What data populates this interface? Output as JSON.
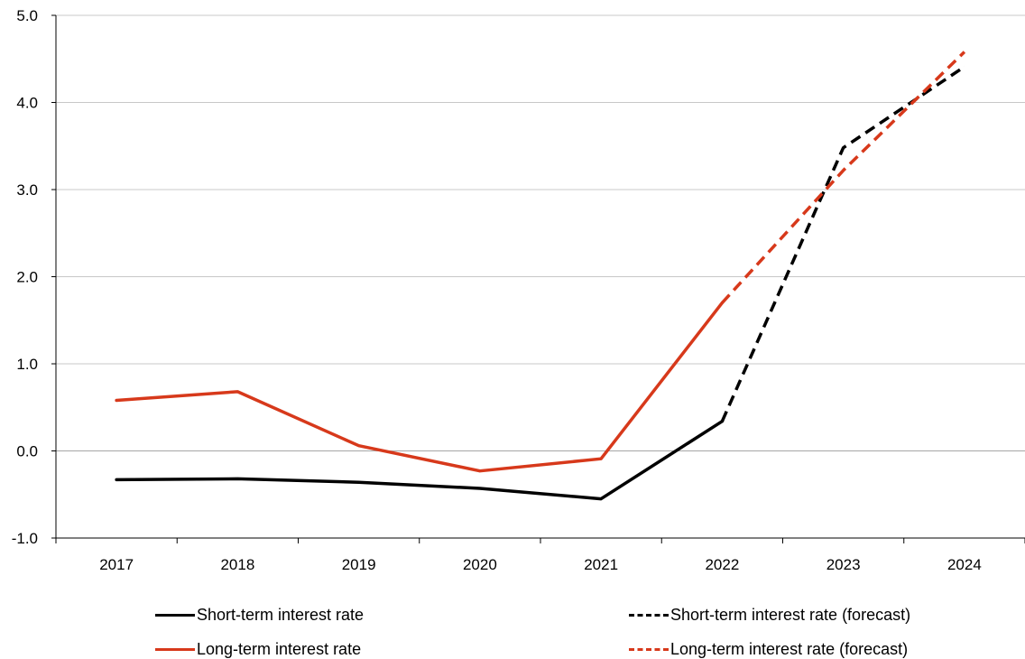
{
  "chart_data": {
    "type": "line",
    "title": "",
    "xlabel": "",
    "ylabel": "",
    "categories": [
      "2017",
      "2018",
      "2019",
      "2020",
      "2021",
      "2022",
      "2023",
      "2024"
    ],
    "ylim": [
      -1.0,
      5.0
    ],
    "yticks": [
      "-1.0",
      "0.0",
      "1.0",
      "2.0",
      "3.0",
      "4.0",
      "5.0"
    ],
    "grid": true,
    "legend_position": "bottom",
    "series": [
      {
        "key": "short",
        "name": "Short-term interest rate",
        "color": "#000000",
        "style": "solid",
        "values": [
          -0.33,
          -0.32,
          -0.36,
          -0.43,
          -0.55,
          0.34,
          null,
          null
        ]
      },
      {
        "key": "short_fc",
        "name": "Short-term interest rate (forecast)",
        "color": "#000000",
        "style": "dashed",
        "values": [
          null,
          null,
          null,
          null,
          null,
          0.34,
          3.48,
          4.41
        ]
      },
      {
        "key": "long",
        "name": "Long-term interest rate",
        "color": "#d7391b",
        "style": "solid",
        "values": [
          0.58,
          0.68,
          0.06,
          -0.23,
          -0.09,
          1.7,
          null,
          null
        ]
      },
      {
        "key": "long_fc",
        "name": "Long-term interest rate (forecast)",
        "color": "#d7391b",
        "style": "dashed",
        "values": [
          null,
          null,
          null,
          null,
          null,
          1.7,
          3.22,
          4.58
        ]
      }
    ]
  }
}
